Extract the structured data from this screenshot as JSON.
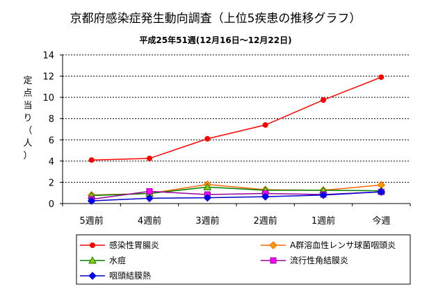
{
  "chart_data": {
    "type": "line",
    "title": "京都府感染症発生動向調査（上位5疾患の推移グラフ）",
    "subtitle": "平成25年51週(12月16日～12月22日)",
    "xlabel": "",
    "ylabel_chars": [
      "定",
      "点",
      "当",
      "り",
      "（",
      "人",
      "）"
    ],
    "categories": [
      "5週前",
      "4週前",
      "3週前",
      "2週前",
      "1週前",
      "今週"
    ],
    "ylim": [
      0,
      14
    ],
    "yticks": [
      0,
      2,
      4,
      6,
      8,
      10,
      12,
      14
    ],
    "grid": true,
    "legend_position": "bottom",
    "series": [
      {
        "name": "感染性胃腸炎",
        "marker": "circle",
        "color": "#ff0000",
        "marker_color": "#ff0000",
        "values": [
          4.1,
          4.25,
          6.1,
          7.4,
          9.75,
          11.9
        ]
      },
      {
        "name": "A群溶血性レンサ球菌咽頭炎",
        "marker": "diamond",
        "color": "#ff6600",
        "marker_color": "#ff9900",
        "values": [
          0.8,
          0.95,
          1.8,
          1.3,
          1.25,
          1.75
        ]
      },
      {
        "name": "水痘",
        "marker": "triangle",
        "color": "#008000",
        "marker_color": "#99cc00",
        "values": [
          0.75,
          0.95,
          1.55,
          1.25,
          1.25,
          1.2
        ]
      },
      {
        "name": "流行性角結膜炎",
        "marker": "square",
        "color": "#990099",
        "marker_color": "#ff00ff",
        "values": [
          0.4,
          1.15,
          0.85,
          0.95,
          0.85,
          1.1
        ]
      },
      {
        "name": "咽頭結膜熱",
        "marker": "diamond",
        "color": "#0000cc",
        "marker_color": "#0000ff",
        "values": [
          0.25,
          0.5,
          0.55,
          0.65,
          0.8,
          1.1
        ]
      }
    ]
  }
}
